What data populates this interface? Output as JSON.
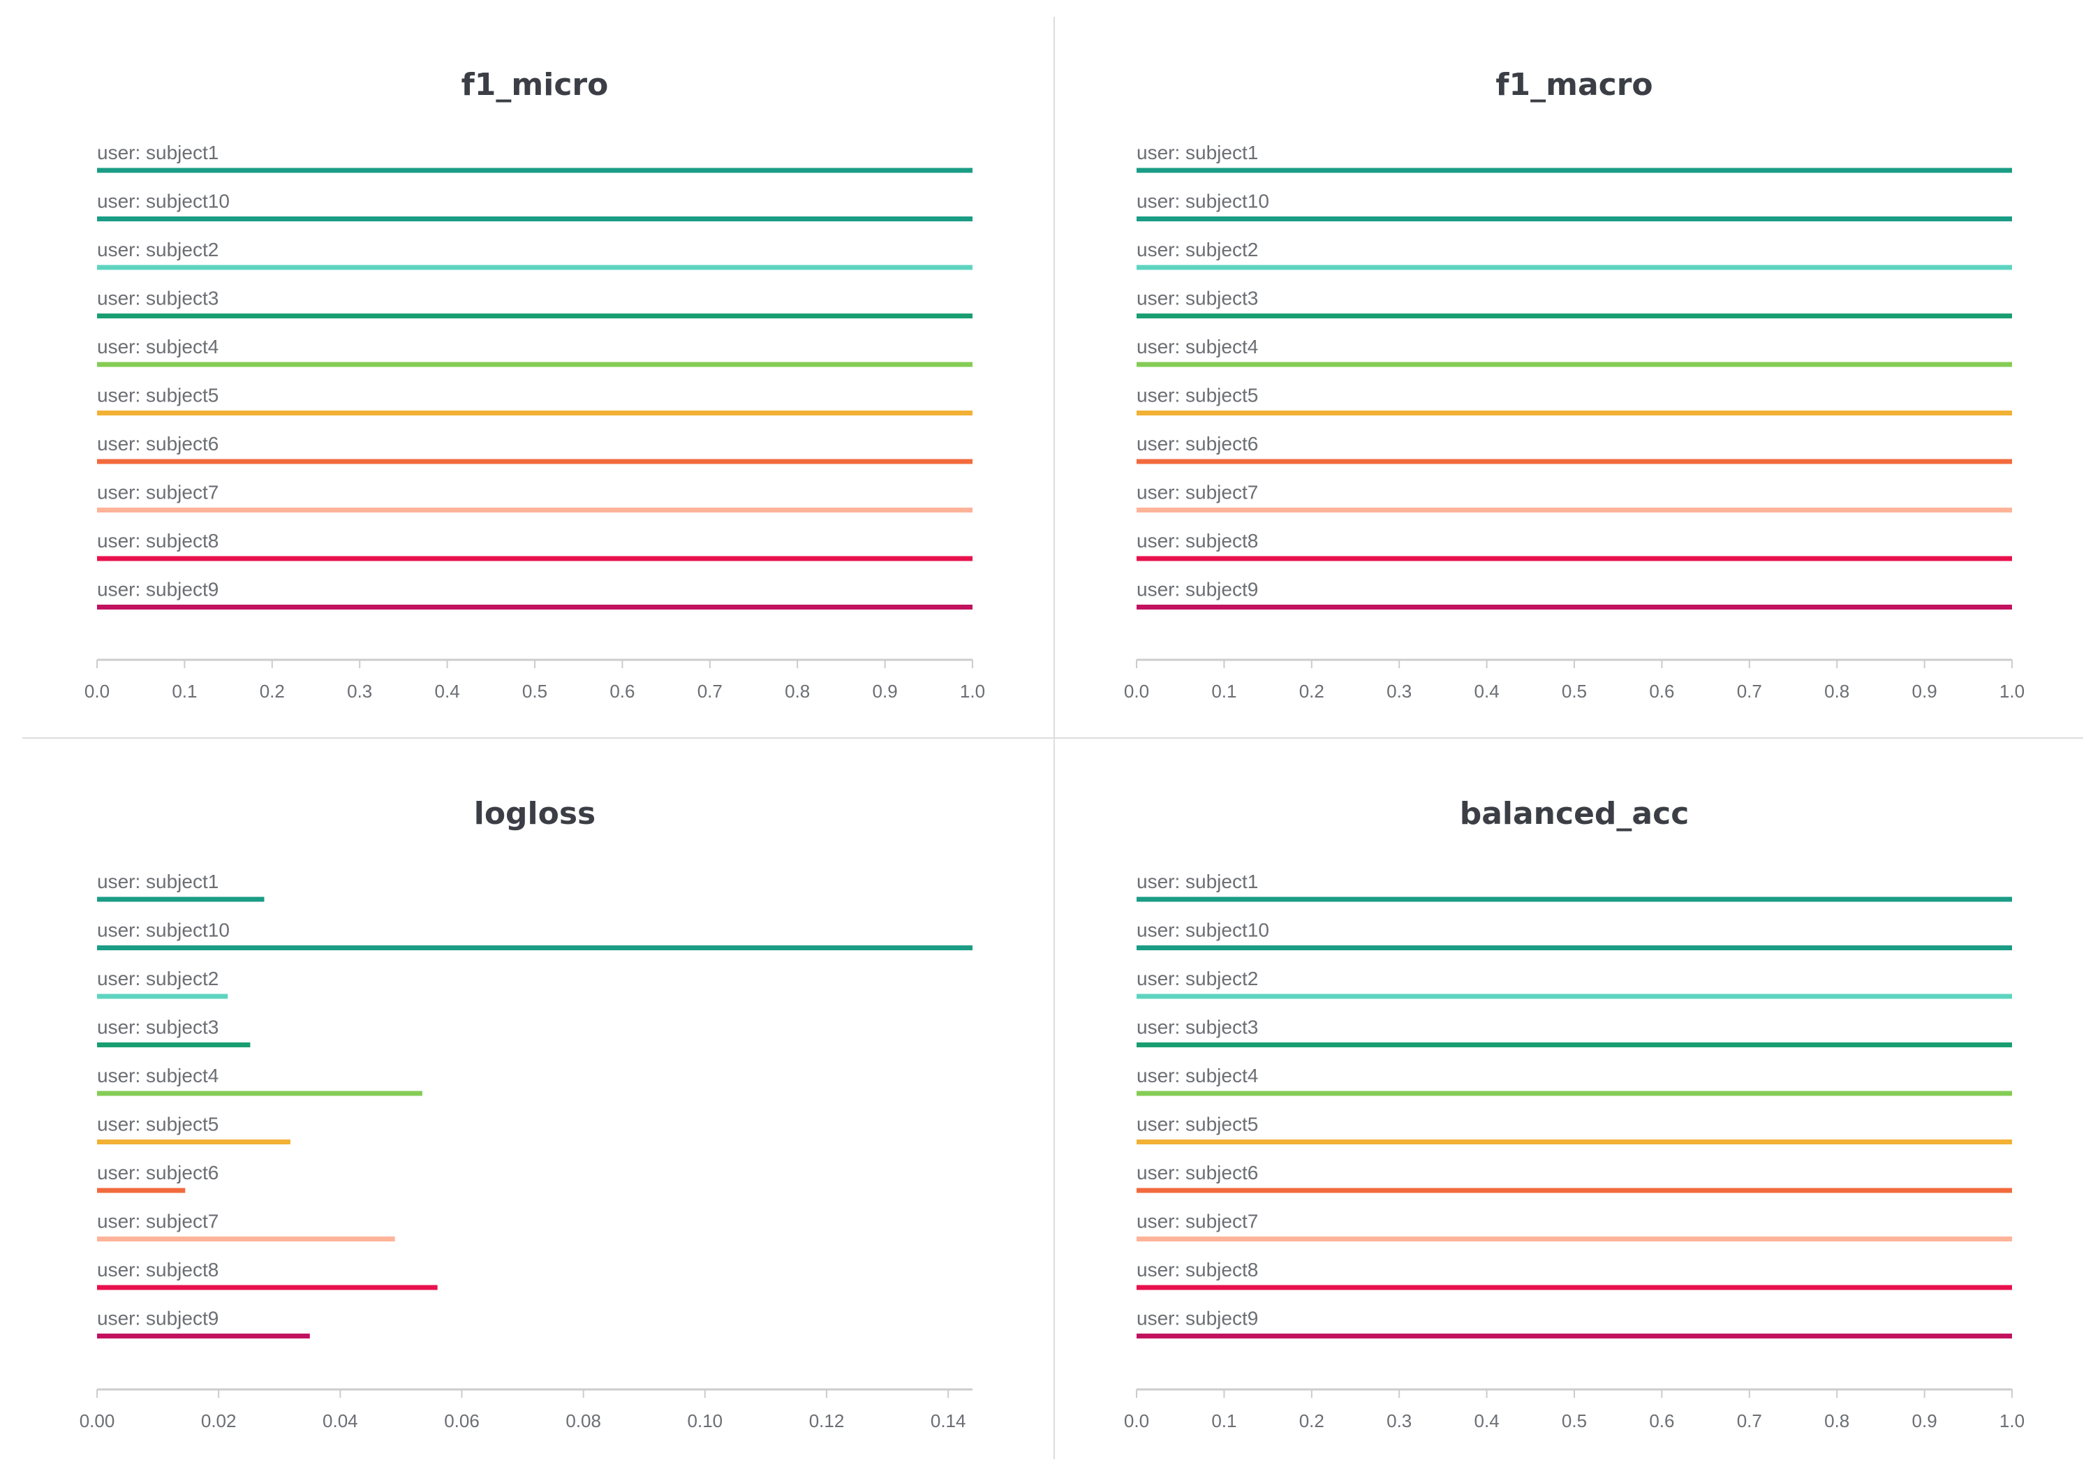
{
  "chart_data": [
    {
      "type": "bar",
      "orientation": "horizontal",
      "title": "f1_micro",
      "xlabel": "",
      "ylabel": "",
      "xlim": [
        0,
        1.0
      ],
      "grid": false,
      "legend": "none",
      "xticks": [
        "0.0",
        "0.1",
        "0.2",
        "0.3",
        "0.4",
        "0.5",
        "0.6",
        "0.7",
        "0.8",
        "0.9",
        "1.0"
      ],
      "categories": [
        "user: subject1",
        "user: subject10",
        "user: subject2",
        "user: subject3",
        "user: subject4",
        "user: subject5",
        "user: subject6",
        "user: subject7",
        "user: subject8",
        "user: subject9"
      ],
      "values": [
        1.0,
        1.0,
        1.0,
        1.0,
        1.0,
        1.0,
        1.0,
        1.0,
        1.0,
        1.0
      ]
    },
    {
      "type": "bar",
      "orientation": "horizontal",
      "title": "f1_macro",
      "xlabel": "",
      "ylabel": "",
      "xlim": [
        0,
        1.0
      ],
      "grid": false,
      "legend": "none",
      "xticks": [
        "0.0",
        "0.1",
        "0.2",
        "0.3",
        "0.4",
        "0.5",
        "0.6",
        "0.7",
        "0.8",
        "0.9",
        "1.0"
      ],
      "categories": [
        "user: subject1",
        "user: subject10",
        "user: subject2",
        "user: subject3",
        "user: subject4",
        "user: subject5",
        "user: subject6",
        "user: subject7",
        "user: subject8",
        "user: subject9"
      ],
      "values": [
        1.0,
        1.0,
        1.0,
        1.0,
        1.0,
        1.0,
        1.0,
        1.0,
        1.0,
        1.0
      ]
    },
    {
      "type": "bar",
      "orientation": "horizontal",
      "title": "logloss",
      "xlabel": "",
      "ylabel": "",
      "xlim": [
        0,
        0.144
      ],
      "grid": false,
      "legend": "none",
      "xticks": [
        "0.00",
        "0.02",
        "0.04",
        "0.06",
        "0.08",
        "0.10",
        "0.12",
        "0.14"
      ],
      "categories": [
        "user: subject1",
        "user: subject10",
        "user: subject2",
        "user: subject3",
        "user: subject4",
        "user: subject5",
        "user: subject6",
        "user: subject7",
        "user: subject8",
        "user: subject9"
      ],
      "values": [
        0.0275,
        0.144,
        0.0215,
        0.0252,
        0.0535,
        0.0318,
        0.0145,
        0.049,
        0.056,
        0.035
      ]
    },
    {
      "type": "bar",
      "orientation": "horizontal",
      "title": "balanced_acc",
      "xlabel": "",
      "ylabel": "",
      "xlim": [
        0,
        1.0
      ],
      "grid": false,
      "legend": "none",
      "xticks": [
        "0.0",
        "0.1",
        "0.2",
        "0.3",
        "0.4",
        "0.5",
        "0.6",
        "0.7",
        "0.8",
        "0.9",
        "1.0"
      ],
      "categories": [
        "user: subject1",
        "user: subject10",
        "user: subject2",
        "user: subject3",
        "user: subject4",
        "user: subject5",
        "user: subject6",
        "user: subject7",
        "user: subject8",
        "user: subject9"
      ],
      "values": [
        1.0,
        1.0,
        1.0,
        1.0,
        1.0,
        1.0,
        1.0,
        1.0,
        1.0,
        1.0
      ]
    }
  ],
  "series_colors": [
    "#1a9c85",
    "#1a9c85",
    "#5ed4c0",
    "#199e71",
    "#85cc55",
    "#f2b134",
    "#f26a3d",
    "#ffb399",
    "#e8114d",
    "#c2125f"
  ],
  "axis_color": "#cccccc",
  "divider_color": "#dddddd"
}
